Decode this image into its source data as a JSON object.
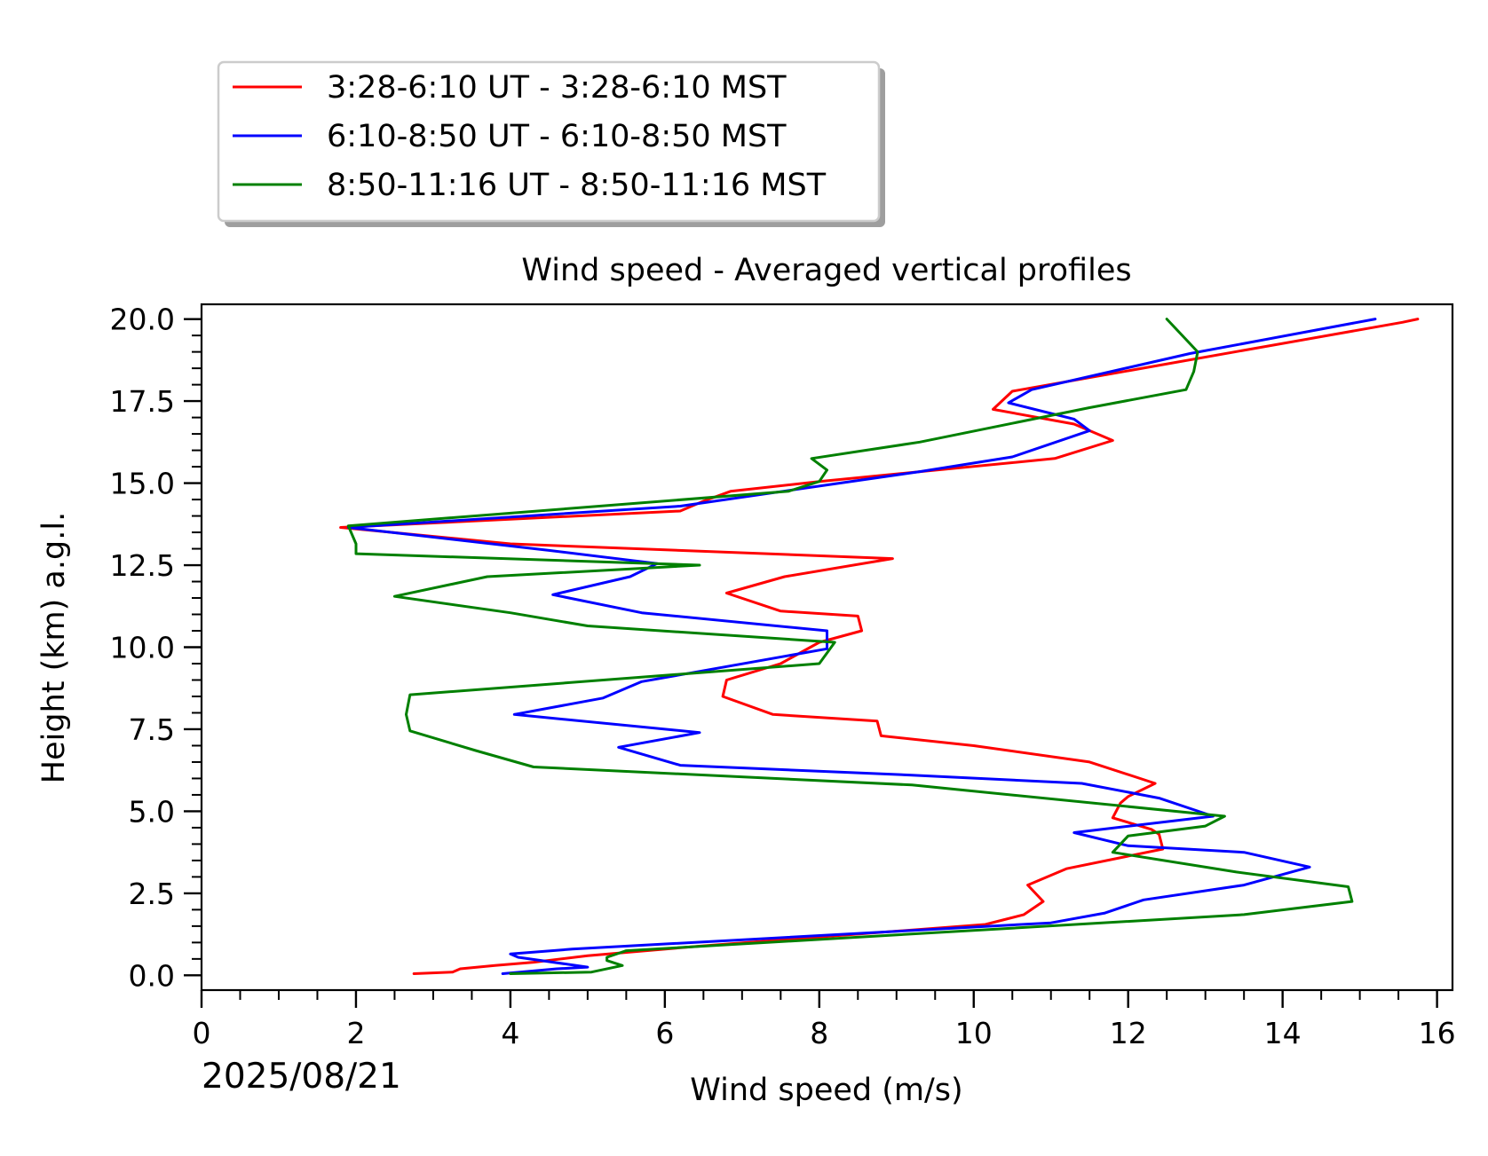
{
  "chart_data": {
    "type": "line",
    "title": "Wind speed - Averaged vertical profiles",
    "xlabel": "Wind speed (m/s)",
    "ylabel": "Height (km) a.g.l.",
    "date_label": "2025/08/21",
    "xlim": [
      0,
      16.2
    ],
    "ylim": [
      -0.45,
      20.45
    ],
    "x_ticks": [
      "0",
      "2",
      "4",
      "6",
      "8",
      "10",
      "12",
      "14",
      "16"
    ],
    "y_ticks": [
      "0.0",
      "2.5",
      "5.0",
      "7.5",
      "10.0",
      "12.5",
      "15.0",
      "17.5",
      "20.0"
    ],
    "grid": false,
    "legend_position": "above-top-left",
    "series": [
      {
        "name": "3:28-6:10 UT - 3:28-6:10 MST",
        "color": "#ff0000",
        "x": [
          2.75,
          3.25,
          3.35,
          3.8,
          4.3,
          5.0,
          6.5,
          10.15,
          10.65,
          10.9,
          10.7,
          11.2,
          12.45,
          12.4,
          12.3,
          11.8,
          11.9,
          12.0,
          12.35,
          11.5,
          10.0,
          8.8,
          8.75,
          7.4,
          6.75,
          6.8,
          7.5,
          8.0,
          8.55,
          8.5,
          7.5,
          6.8,
          7.55,
          8.95,
          4.0,
          1.8,
          6.2,
          6.5,
          6.85,
          8.0,
          11.05,
          11.8,
          11.3,
          10.25,
          10.5,
          15.55,
          15.75
        ],
        "y": [
          0.05,
          0.1,
          0.2,
          0.3,
          0.4,
          0.6,
          0.9,
          1.55,
          1.85,
          2.25,
          2.75,
          3.25,
          3.85,
          4.3,
          4.45,
          4.8,
          5.25,
          5.45,
          5.85,
          6.5,
          7.0,
          7.3,
          7.75,
          7.95,
          8.5,
          9.0,
          9.5,
          10.15,
          10.5,
          10.95,
          11.1,
          11.65,
          12.15,
          12.7,
          13.15,
          13.65,
          14.15,
          14.45,
          14.75,
          15.05,
          15.75,
          16.3,
          16.8,
          17.25,
          17.8,
          19.9,
          20.0
        ]
      },
      {
        "name": "6:10-8:50 UT - 6:10-8:50 MST",
        "color": "#0000ff",
        "x": [
          3.9,
          4.6,
          5.0,
          4.1,
          4.0,
          4.8,
          11.0,
          11.7,
          12.2,
          13.5,
          14.35,
          13.5,
          12.0,
          11.3,
          13.1,
          12.4,
          11.4,
          9.2,
          6.2,
          5.4,
          6.45,
          4.05,
          5.2,
          5.7,
          8.1,
          8.1,
          5.7,
          4.55,
          5.55,
          5.9,
          4.5,
          1.9,
          6.2,
          9.3,
          10.5,
          11.5,
          11.3,
          10.45,
          10.75,
          12.8,
          15.2
        ],
        "y": [
          0.05,
          0.2,
          0.25,
          0.55,
          0.65,
          0.8,
          1.6,
          1.9,
          2.3,
          2.75,
          3.3,
          3.75,
          3.95,
          4.35,
          4.85,
          5.4,
          5.85,
          6.1,
          6.4,
          6.95,
          7.4,
          7.95,
          8.45,
          8.95,
          9.95,
          10.5,
          11.05,
          11.6,
          12.15,
          12.55,
          12.95,
          13.65,
          14.3,
          15.35,
          15.8,
          16.6,
          16.95,
          17.45,
          17.85,
          18.95,
          20.0
        ]
      },
      {
        "name": "8:50-11:16 UT - 8:50-11:16 MST",
        "color": "#008000",
        "x": [
          4.0,
          5.05,
          5.45,
          5.25,
          5.25,
          5.5,
          13.5,
          14.9,
          14.85,
          13.4,
          11.8,
          12.0,
          13.0,
          13.25,
          9.2,
          4.3,
          3.55,
          2.7,
          2.65,
          2.7,
          8.0,
          8.2,
          5.0,
          4.0,
          2.5,
          3.7,
          6.45,
          2.0,
          2.0,
          1.9,
          7.6,
          8.0,
          8.1,
          7.9,
          9.3,
          11.5,
          12.75,
          12.85,
          12.9,
          12.5
        ],
        "y": [
          0.05,
          0.1,
          0.3,
          0.45,
          0.55,
          0.75,
          1.85,
          2.25,
          2.7,
          3.15,
          3.75,
          4.25,
          4.55,
          4.85,
          5.8,
          6.35,
          6.85,
          7.45,
          7.95,
          8.55,
          9.5,
          10.15,
          10.65,
          11.05,
          11.55,
          12.15,
          12.5,
          12.85,
          13.15,
          13.7,
          14.75,
          15.05,
          15.4,
          15.75,
          16.25,
          17.3,
          17.85,
          18.4,
          19.0,
          20.0
        ]
      }
    ]
  }
}
